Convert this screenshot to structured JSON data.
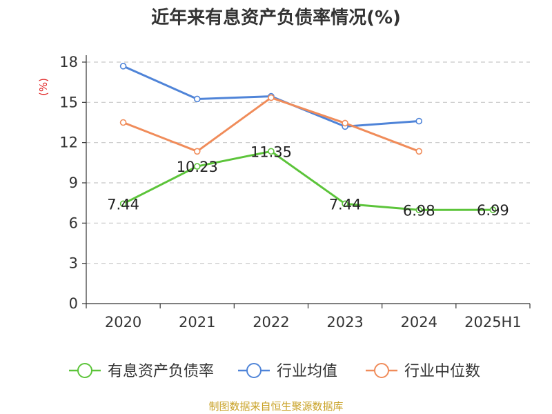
{
  "chart_data": {
    "type": "line",
    "title": "近年来有息资产负债率情况(%)",
    "ylabel": "(%)",
    "xlabel": "",
    "categories": [
      "2020",
      "2021",
      "2022",
      "2023",
      "2024",
      "2025H1"
    ],
    "ylim": [
      0,
      18
    ],
    "yticks": [
      0,
      3,
      6,
      9,
      12,
      15,
      18
    ],
    "grid": true,
    "legend_position": "bottom",
    "series": [
      {
        "name": "有息资产负债率",
        "color": "#5cc43a",
        "values": [
          7.44,
          10.23,
          11.35,
          7.44,
          6.98,
          6.99
        ],
        "labels": [
          "7.44",
          "10.23",
          "11.35",
          "7.44",
          "6.98",
          "6.99"
        ]
      },
      {
        "name": "行业均值",
        "color": "#4f84d8",
        "values": [
          17.7,
          15.25,
          15.45,
          13.2,
          13.6,
          null
        ]
      },
      {
        "name": "行业中位数",
        "color": "#f08c5a",
        "values": [
          13.5,
          11.35,
          15.35,
          13.45,
          11.35,
          null
        ]
      }
    ],
    "source": "制图数据来自恒生聚源数据库"
  }
}
